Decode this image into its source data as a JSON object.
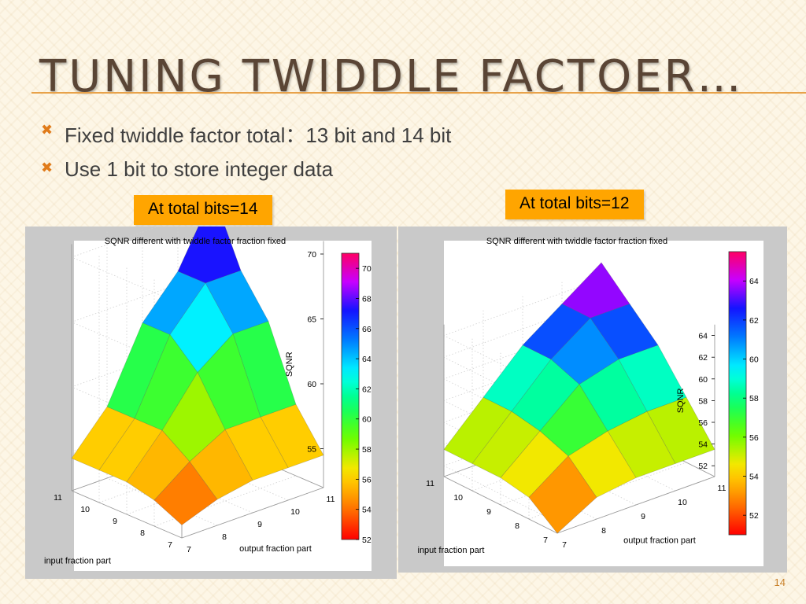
{
  "slide": {
    "title": "TUNING TWIDDLE FACTOER…",
    "bullets": [
      "Fixed twiddle factor total：13 bit and 14 bit",
      "Use 1 bit to store integer data"
    ],
    "bullet_icon": "x-mark-icon",
    "label_left": "At total bits=14",
    "label_right": "At total bits=12",
    "slide_number": "14",
    "accent_color": "#ffa500",
    "rule_color": "#e8a24a"
  },
  "chart_data": [
    {
      "type": "surface3d",
      "title": "SQNR different with twiddle factor fraction fixed",
      "xlabel": "output fraction part",
      "ylabel": "input fraction part",
      "zlabel": "SQNR",
      "x_ticks": [
        "7",
        "8",
        "9",
        "10",
        "11"
      ],
      "y_ticks": [
        "7",
        "8",
        "9",
        "10",
        "11"
      ],
      "z_ticks": [
        "55",
        "60",
        "65",
        "70"
      ],
      "zlim": [
        52,
        71
      ],
      "colorbar_ticks": [
        "52",
        "54",
        "56",
        "58",
        "60",
        "62",
        "64",
        "66",
        "68",
        "70"
      ],
      "colorbar_range": [
        52,
        71
      ],
      "x": [
        7,
        8,
        9,
        10,
        11
      ],
      "y": [
        7,
        8,
        9,
        10,
        11
      ],
      "z": [
        [
          53,
          54,
          54.5,
          54.5,
          54.5
        ],
        [
          54,
          56,
          57.5,
          57.5,
          57.5
        ],
        [
          54.5,
          57.5,
          61,
          63,
          63
        ],
        [
          54.5,
          57.5,
          63,
          66,
          66
        ],
        [
          54.5,
          57.5,
          63,
          66,
          71
        ]
      ]
    },
    {
      "type": "surface3d",
      "title": "SQNR different with twiddle factor fraction fixed",
      "xlabel": "output fraction part",
      "ylabel": "input fraction part",
      "zlabel": "SQNR",
      "x_ticks": [
        "7",
        "8",
        "9",
        "10",
        "11"
      ],
      "y_ticks": [
        "7",
        "8",
        "9",
        "10",
        "11"
      ],
      "z_ticks": [
        "52",
        "54",
        "56",
        "58",
        "60",
        "62",
        "64"
      ],
      "zlim": [
        51,
        65
      ],
      "colorbar_ticks": [
        "52",
        "54",
        "56",
        "58",
        "60",
        "62",
        "64"
      ],
      "colorbar_range": [
        51,
        65.5
      ],
      "x": [
        7,
        8,
        9,
        10,
        11
      ],
      "y": [
        7,
        8,
        9,
        10,
        11
      ],
      "z": [
        [
          51,
          53,
          53.5,
          53.5,
          53.5
        ],
        [
          53,
          55.5,
          56.5,
          57,
          57
        ],
        [
          53.5,
          56.5,
          59.5,
          60.5,
          60.5
        ],
        [
          53.5,
          57,
          60.5,
          63,
          63
        ],
        [
          53.5,
          57,
          60.5,
          63,
          65.5
        ]
      ]
    }
  ]
}
